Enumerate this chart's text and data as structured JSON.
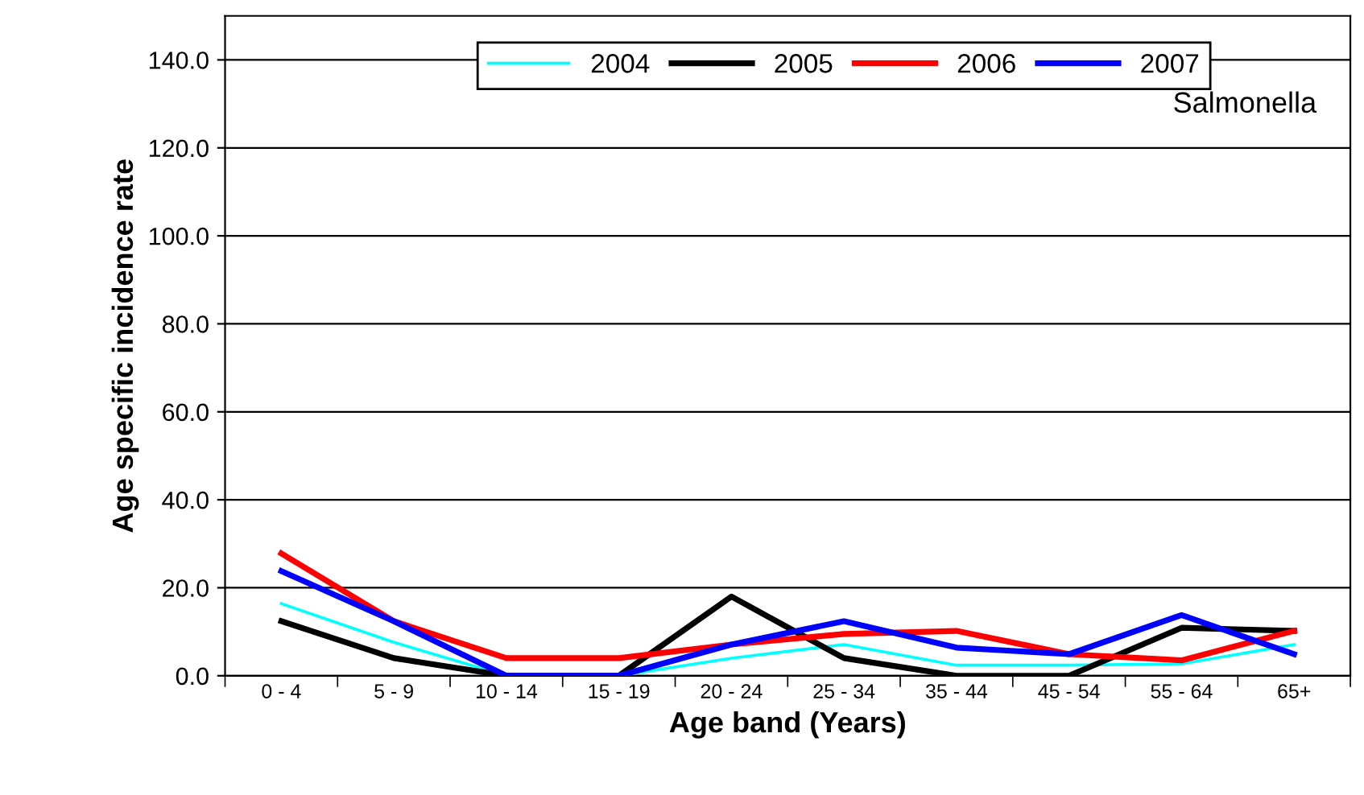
{
  "chart_data": {
    "type": "line",
    "xlabel": "Age band (Years)",
    "ylabel": "Age specific incidence rate",
    "categories": [
      "0 - 4",
      "5 - 9",
      "10 - 14",
      "15 - 19",
      "20 - 24",
      "25 - 34",
      "35 - 44",
      "45 - 54",
      "55 - 64",
      "65+"
    ],
    "series": [
      {
        "name": "2004",
        "color": "#00ffff",
        "values": [
          16.4,
          7.6,
          0,
          0,
          4,
          7.1,
          2.4,
          2.4,
          2.7,
          7.1
        ]
      },
      {
        "name": "2005",
        "color": "#000000",
        "values": [
          12.4,
          4,
          0,
          0,
          18,
          4,
          0,
          0,
          10.9,
          10.2
        ]
      },
      {
        "name": "2006",
        "color": "#ff0000",
        "values": [
          27.8,
          12.4,
          4,
          4,
          7.1,
          9.5,
          10.2,
          4.9,
          3.5,
          10.2
        ]
      },
      {
        "name": "2007",
        "color": "#0000ff",
        "values": [
          23.8,
          12.4,
          0,
          0,
          7.1,
          12.4,
          6.4,
          4.9,
          13.8,
          4.9
        ]
      }
    ],
    "ylim": [
      0,
      150
    ],
    "yticks": [
      {
        "value": 0,
        "label": "0.0"
      },
      {
        "value": 20,
        "label": "20.0"
      },
      {
        "value": 40,
        "label": "40.0"
      },
      {
        "value": 60,
        "label": "60.0"
      },
      {
        "value": 80,
        "label": "80.0"
      },
      {
        "value": 100,
        "label": "100.0"
      },
      {
        "value": 120,
        "label": "120.0"
      },
      {
        "value": 140,
        "label": "140.0"
      }
    ],
    "grid": "y",
    "legend": "top",
    "marker": "none",
    "line_style": "solid",
    "annotations": [
      "Salmonella"
    ]
  }
}
